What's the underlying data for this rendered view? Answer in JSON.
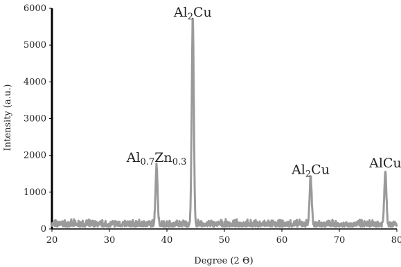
{
  "chart_data": {
    "type": "line",
    "xlabel": "Degree (2 Θ)",
    "ylabel": "Intensity (a.u.)",
    "xlim": [
      20,
      80
    ],
    "ylim": [
      0,
      6000
    ],
    "xticks": [
      20,
      30,
      40,
      50,
      60,
      70,
      80
    ],
    "yticks": [
      0,
      1000,
      2000,
      3000,
      4000,
      5000,
      6000
    ],
    "grid": false,
    "line_color": "#9a9a9a",
    "axis_color": "#000000",
    "series": [
      {
        "peaks": [
          {
            "x": 38.2,
            "y": 1600
          },
          {
            "x": 44.5,
            "y": 5550
          },
          {
            "x": 65.0,
            "y": 1270
          },
          {
            "x": 78.0,
            "y": 1450
          }
        ]
      }
    ],
    "annotations": [
      {
        "base": "Al",
        "sub1": "0.7",
        "mid": "Zn",
        "sub2": "0.3",
        "tail": "",
        "x": 38.2,
        "y": 1600
      },
      {
        "base": "Al",
        "sub1": "2",
        "mid": "Cu",
        "sub2": "",
        "tail": "",
        "x": 44.5,
        "y": 5550
      },
      {
        "base": "Al",
        "sub1": "2",
        "mid": "Cu",
        "sub2": "",
        "tail": "",
        "x": 65.0,
        "y": 1270
      },
      {
        "base": "AlCu",
        "sub1": "",
        "mid": "",
        "sub2": "",
        "tail": "",
        "x": 78.0,
        "y": 1450
      }
    ]
  }
}
